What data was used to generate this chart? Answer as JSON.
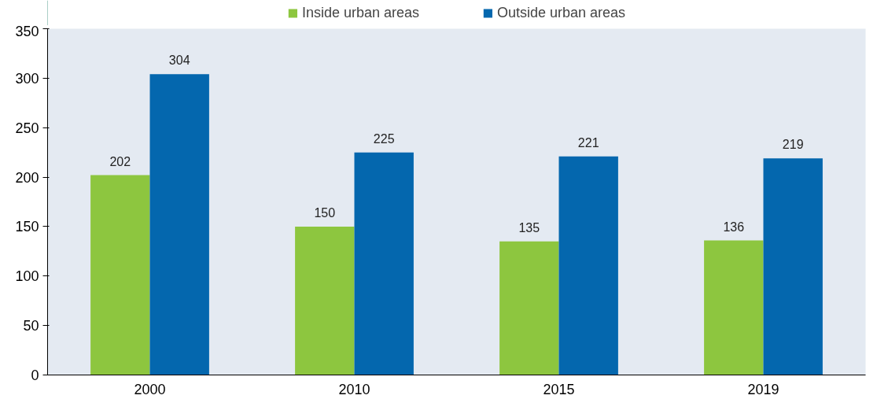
{
  "chart_data": {
    "type": "bar",
    "categories": [
      "2000",
      "2010",
      "2015",
      "2019"
    ],
    "series": [
      {
        "name": "Inside urban areas",
        "color": "#8dc63f",
        "values": [
          202,
          150,
          135,
          136
        ]
      },
      {
        "name": "Outside urban areas",
        "color": "#0467ae",
        "values": [
          304,
          225,
          221,
          219
        ]
      }
    ],
    "ylim": [
      0,
      350
    ],
    "yticks": [
      0,
      50,
      100,
      150,
      200,
      250,
      300,
      350
    ],
    "data_labels": true,
    "grid": false,
    "legend": "top"
  }
}
